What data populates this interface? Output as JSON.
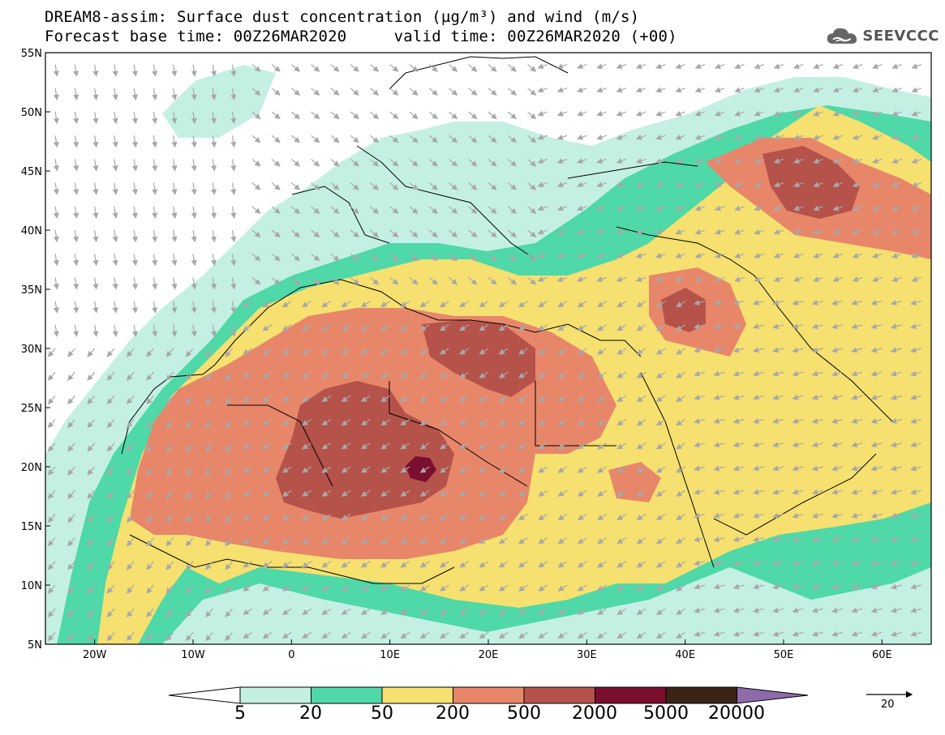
{
  "title_line1": "DREAM8-assim: Surface dust concentration (µg/m³) and wind (m/s)",
  "title_line2": "Forecast base time: 00Z26MAR2020     valid time: 00Z26MAR2020 (+00)",
  "logo": {
    "text": "SEEVCCC",
    "icon": "cloud-icon"
  },
  "axes": {
    "lon_labels": [
      "20W",
      "10W",
      "0",
      "10E",
      "20E",
      "30E",
      "40E",
      "50E",
      "60E"
    ],
    "lon_values": [
      -20,
      -10,
      0,
      10,
      20,
      30,
      40,
      50,
      60
    ],
    "lat_labels": [
      "55N",
      "50N",
      "45N",
      "40N",
      "35N",
      "30N",
      "25N",
      "20N",
      "15N",
      "10N",
      "5N"
    ],
    "lat_values": [
      55,
      50,
      45,
      40,
      35,
      30,
      25,
      20,
      15,
      10,
      5
    ],
    "lon_range": [
      -25,
      65
    ],
    "lat_range": [
      5,
      55
    ]
  },
  "legend": {
    "labels": [
      "5",
      "20",
      "50",
      "200",
      "500",
      "2000",
      "5000",
      "20000"
    ],
    "colors": [
      "#c4f0e4",
      "#4fd8a8",
      "#f5e070",
      "#e8866a",
      "#b5524a",
      "#7a0f30",
      "#3c2415",
      "#8e6aa8"
    ]
  },
  "wind_reference": {
    "label": "20"
  },
  "colors": {
    "ocean": "#ffffff",
    "border": "#000000",
    "arrow": "#a8a8a8"
  }
}
